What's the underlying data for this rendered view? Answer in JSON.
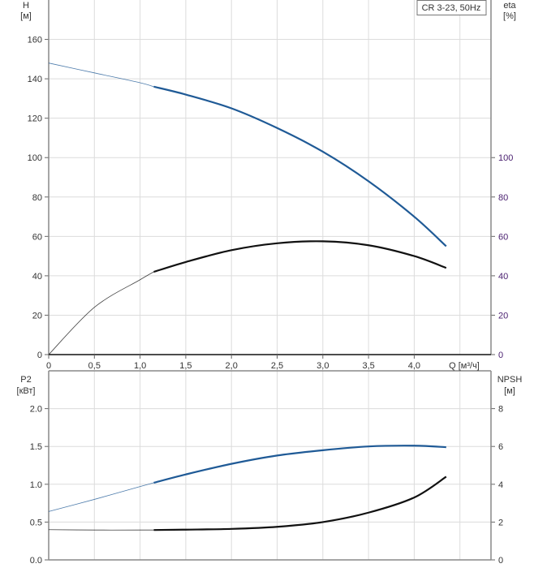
{
  "chart_data": [
    {
      "type": "line",
      "title": "CR 3-23, 50Hz",
      "xlabel": "Q [м³/ч]",
      "ylabel": "H [м]",
      "ylabel_name": "H",
      "ylabel_unit": "[м]",
      "y2label_name": "eta",
      "y2label_unit": "[%]",
      "xlim": [
        0,
        4.84
      ],
      "ylim": [
        0,
        180
      ],
      "y2lim": [
        0,
        180
      ],
      "grid": true,
      "x_ticks": [
        "0",
        "0,5",
        "1,0",
        "1,5",
        "2,0",
        "2,5",
        "3,0",
        "3,5",
        "4,0"
      ],
      "x_tick_values": [
        0,
        0.5,
        1,
        1.5,
        2,
        2.5,
        3,
        3.5,
        4
      ],
      "y_ticks": [
        0,
        20,
        40,
        60,
        80,
        100,
        120,
        140,
        160
      ],
      "y2_ticks": [
        0,
        20,
        40,
        60,
        80,
        100
      ],
      "operating_range_start": 1.15,
      "x": [
        0,
        0.5,
        1.0,
        1.15,
        1.5,
        2.0,
        2.5,
        3.0,
        3.5,
        4.0,
        4.35
      ],
      "series": [
        {
          "name": "H",
          "axis": "left",
          "color": "#1f5a96",
          "values": [
            148,
            143,
            138,
            136,
            132,
            125,
            115,
            103,
            88,
            70,
            55
          ]
        },
        {
          "name": "eta",
          "axis": "right",
          "color": "#111111",
          "values": [
            0,
            24,
            38,
            42,
            47,
            53,
            56.5,
            57.5,
            55.5,
            50,
            44
          ]
        }
      ]
    },
    {
      "type": "line",
      "ylabel": "P2 [кВт]",
      "ylabel_name": "P2",
      "ylabel_unit": "[кВт]",
      "y2label_name": "NPSH",
      "y2label_unit": "[м]",
      "xlim": [
        0,
        4.84
      ],
      "ylim": [
        0,
        2.5
      ],
      "y2lim": [
        0,
        10
      ],
      "grid": true,
      "y_ticks": [
        "0.0",
        "0.5",
        "1.0",
        "1.5",
        "2.0"
      ],
      "y_tick_values": [
        0,
        0.5,
        1,
        1.5,
        2
      ],
      "y2_ticks": [
        0,
        2,
        4,
        6,
        8
      ],
      "operating_range_start": 1.15,
      "x": [
        0,
        0.5,
        1.0,
        1.15,
        1.5,
        2.0,
        2.5,
        3.0,
        3.5,
        4.0,
        4.35
      ],
      "series": [
        {
          "name": "P2",
          "axis": "left",
          "color": "#1f5a96",
          "values": [
            0.64,
            0.8,
            0.97,
            1.02,
            1.13,
            1.27,
            1.38,
            1.45,
            1.5,
            1.51,
            1.49
          ]
        },
        {
          "name": "NPSH",
          "axis": "right",
          "color": "#111111",
          "values": [
            1.6,
            1.58,
            1.58,
            1.58,
            1.6,
            1.64,
            1.75,
            2.0,
            2.5,
            3.3,
            4.4
          ]
        }
      ]
    }
  ]
}
